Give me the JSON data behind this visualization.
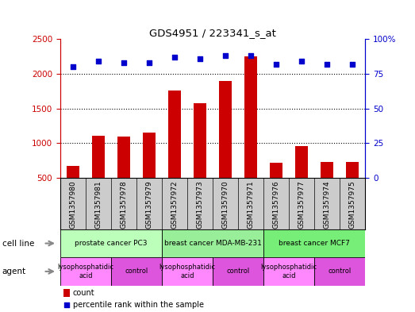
{
  "title": "GDS4951 / 223341_s_at",
  "samples": [
    "GSM1357980",
    "GSM1357981",
    "GSM1357978",
    "GSM1357979",
    "GSM1357972",
    "GSM1357973",
    "GSM1357970",
    "GSM1357971",
    "GSM1357976",
    "GSM1357977",
    "GSM1357974",
    "GSM1357975"
  ],
  "counts": [
    670,
    1110,
    1090,
    1150,
    1760,
    1570,
    1900,
    2250,
    720,
    960,
    730,
    730
  ],
  "percentiles": [
    80,
    84,
    83,
    83,
    87,
    86,
    88,
    88,
    82,
    84,
    82,
    82
  ],
  "bar_color": "#cc0000",
  "dot_color": "#0000cc",
  "ylim_left": [
    500,
    2500
  ],
  "ylim_right": [
    0,
    100
  ],
  "yticks_left": [
    500,
    1000,
    1500,
    2000,
    2500
  ],
  "yticks_right": [
    0,
    25,
    50,
    75,
    100
  ],
  "ytick_right_labels": [
    "0",
    "25",
    "50",
    "75",
    "100%"
  ],
  "cell_line_groups": [
    {
      "label": "prostate cancer PC3",
      "start": 0,
      "end": 4,
      "color": "#bbffbb"
    },
    {
      "label": "breast cancer MDA-MB-231",
      "start": 4,
      "end": 8,
      "color": "#aaffaa"
    },
    {
      "label": "breast cancer MCF7",
      "start": 8,
      "end": 12,
      "color": "#77ee77"
    }
  ],
  "agent_groups": [
    {
      "label": "lysophosphatidic\nacid",
      "start": 0,
      "end": 2,
      "color": "#ff88ff"
    },
    {
      "label": "control",
      "start": 2,
      "end": 4,
      "color": "#dd44dd"
    },
    {
      "label": "lysophosphatidic\nacid",
      "start": 4,
      "end": 6,
      "color": "#ff88ff"
    },
    {
      "label": "control",
      "start": 6,
      "end": 8,
      "color": "#dd44dd"
    },
    {
      "label": "lysophosphatidic\nacid",
      "start": 8,
      "end": 10,
      "color": "#ff88ff"
    },
    {
      "label": "control",
      "start": 10,
      "end": 12,
      "color": "#dd44dd"
    }
  ],
  "xtick_bg_color": "#cccccc",
  "cell_line_color": "#aaffaa",
  "agent_lpa_color": "#ff88ff",
  "agent_ctrl_color": "#dd55dd",
  "legend_count_color": "#cc0000",
  "legend_dot_color": "#0000cc",
  "left_label_color": "#000000",
  "arrow_color": "#888888"
}
